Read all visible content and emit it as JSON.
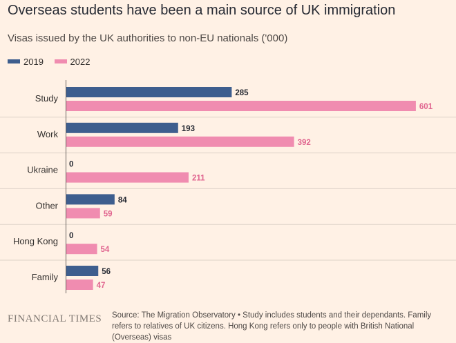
{
  "title": "Overseas students have been a main source of UK immigration",
  "subtitle": "Visas issued by the UK authorities to non-EU nationals ('000)",
  "colors": {
    "s2019": "#3e5e8e",
    "s2022": "#f08cb0",
    "label2022": "#e0648f",
    "label2019": "#262a33"
  },
  "chart_data": {
    "type": "bar",
    "orientation": "horizontal",
    "categories": [
      "Study",
      "Work",
      "Ukraine",
      "Other",
      "Hong Kong",
      "Family"
    ],
    "series": [
      {
        "name": "2019",
        "values": [
          285,
          193,
          0,
          84,
          0,
          56
        ]
      },
      {
        "name": "2022",
        "values": [
          601,
          392,
          211,
          59,
          54,
          47
        ]
      }
    ],
    "xlim": [
      0,
      610
    ],
    "legend": "top-left",
    "grid": false
  },
  "footer": {
    "logo": "FINANCIAL TIMES",
    "source": "Source: The Migration Observatory • Study includes students and their dependants. Family refers to relatives of UK citizens. Hong Kong refers only to people with British National (Overseas) visas"
  }
}
